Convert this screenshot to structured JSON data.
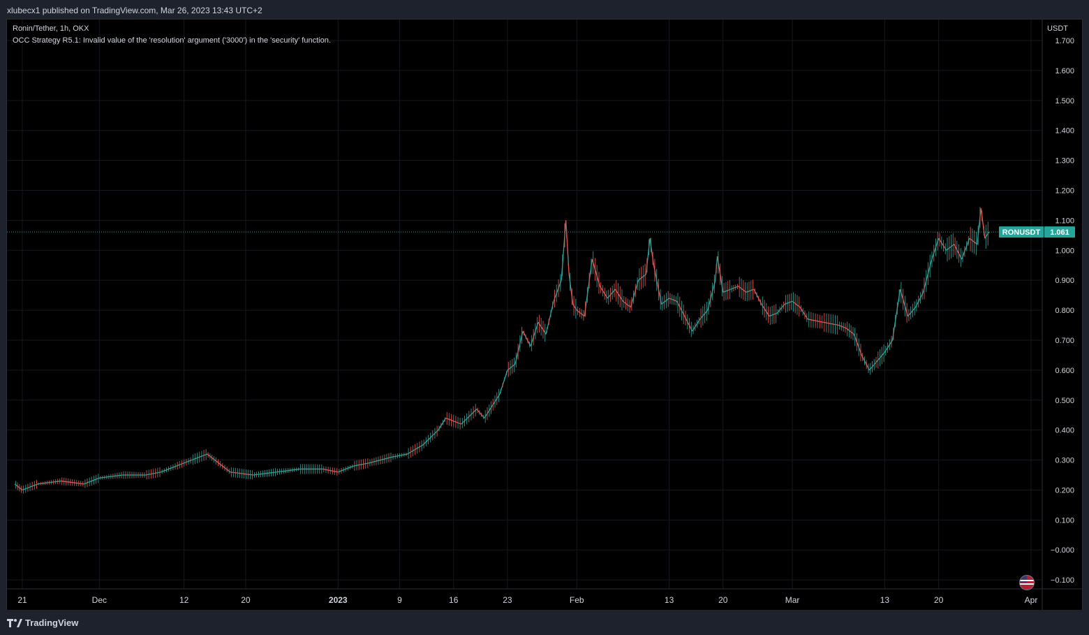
{
  "header": {
    "published_text": "xlubecx1 published on TradingView.com, Mar 26, 2023 13:43 UTC+2"
  },
  "legend": {
    "symbol_line": "Ronin/Tether, 1h, OKX",
    "indicator_error": "OCC Strategy R5.1: Invalid value of the 'resolution' argument ('3000') in the 'security' function."
  },
  "footer": {
    "brand": "TradingView"
  },
  "chart_data": {
    "type": "line",
    "symbol": "RONUSDT",
    "currency_label": "USDT",
    "last_price": "1.061",
    "yaxis": {
      "ylim": [
        -0.13,
        1.77
      ],
      "ticks": [
        "1.700",
        "1.600",
        "1.500",
        "1.400",
        "1.300",
        "1.200",
        "1.100",
        "1.000",
        "0.900",
        "0.800",
        "0.700",
        "0.600",
        "0.500",
        "0.400",
        "0.300",
        "0.200",
        "0.100",
        "−0.000",
        "−0.100"
      ]
    },
    "xaxis": {
      "ticks": [
        {
          "label": "21",
          "date": "2022-11-21"
        },
        {
          "label": "Dec",
          "date": "2022-12-01"
        },
        {
          "label": "12",
          "date": "2022-12-12"
        },
        {
          "label": "20",
          "date": "2022-12-20"
        },
        {
          "label": "2023",
          "date": "2023-01-01"
        },
        {
          "label": "9",
          "date": "2023-01-09"
        },
        {
          "label": "16",
          "date": "2023-01-16"
        },
        {
          "label": "23",
          "date": "2023-01-23"
        },
        {
          "label": "Feb",
          "date": "2023-02-01"
        },
        {
          "label": "13",
          "date": "2023-02-13"
        },
        {
          "label": "20",
          "date": "2023-02-20"
        },
        {
          "label": "Mar",
          "date": "2023-03-01"
        },
        {
          "label": "13",
          "date": "2023-03-13"
        },
        {
          "label": "20",
          "date": "2023-03-20"
        },
        {
          "label": "Apr",
          "date": "2023-04-01"
        }
      ]
    },
    "series": [
      {
        "values": [
          {
            "x": "2022-11-20",
            "y": 0.22
          },
          {
            "x": "2022-11-21",
            "y": 0.2
          },
          {
            "x": "2022-11-23",
            "y": 0.22
          },
          {
            "x": "2022-11-26",
            "y": 0.23
          },
          {
            "x": "2022-11-29",
            "y": 0.22
          },
          {
            "x": "2022-12-01",
            "y": 0.24
          },
          {
            "x": "2022-12-04",
            "y": 0.25
          },
          {
            "x": "2022-12-07",
            "y": 0.25
          },
          {
            "x": "2022-12-09",
            "y": 0.26
          },
          {
            "x": "2022-12-11",
            "y": 0.28
          },
          {
            "x": "2022-12-13",
            "y": 0.3
          },
          {
            "x": "2022-12-15",
            "y": 0.32
          },
          {
            "x": "2022-12-16",
            "y": 0.3
          },
          {
            "x": "2022-12-18",
            "y": 0.26
          },
          {
            "x": "2022-12-21",
            "y": 0.25
          },
          {
            "x": "2022-12-24",
            "y": 0.26
          },
          {
            "x": "2022-12-27",
            "y": 0.27
          },
          {
            "x": "2022-12-30",
            "y": 0.27
          },
          {
            "x": "2023-01-01",
            "y": 0.26
          },
          {
            "x": "2023-01-03",
            "y": 0.28
          },
          {
            "x": "2023-01-05",
            "y": 0.29
          },
          {
            "x": "2023-01-08",
            "y": 0.31
          },
          {
            "x": "2023-01-10",
            "y": 0.32
          },
          {
            "x": "2023-01-12",
            "y": 0.35
          },
          {
            "x": "2023-01-14",
            "y": 0.4
          },
          {
            "x": "2023-01-15",
            "y": 0.44
          },
          {
            "x": "2023-01-17",
            "y": 0.42
          },
          {
            "x": "2023-01-19",
            "y": 0.47
          },
          {
            "x": "2023-01-20",
            "y": 0.44
          },
          {
            "x": "2023-01-21",
            "y": 0.48
          },
          {
            "x": "2023-01-22",
            "y": 0.52
          },
          {
            "x": "2023-01-23",
            "y": 0.6
          },
          {
            "x": "2023-01-24",
            "y": 0.62
          },
          {
            "x": "2023-01-25",
            "y": 0.73
          },
          {
            "x": "2023-01-26",
            "y": 0.68
          },
          {
            "x": "2023-01-27",
            "y": 0.76
          },
          {
            "x": "2023-01-28",
            "y": 0.72
          },
          {
            "x": "2023-01-29",
            "y": 0.83
          },
          {
            "x": "2023-01-30",
            "y": 0.9
          },
          {
            "x": "2023-01-30T14:00",
            "y": 1.1
          },
          {
            "x": "2023-01-31",
            "y": 0.92
          },
          {
            "x": "2023-01-31T12:00",
            "y": 0.82
          },
          {
            "x": "2023-02-01",
            "y": 0.8
          },
          {
            "x": "2023-02-02",
            "y": 0.78
          },
          {
            "x": "2023-02-03",
            "y": 0.97
          },
          {
            "x": "2023-02-04",
            "y": 0.88
          },
          {
            "x": "2023-02-05",
            "y": 0.84
          },
          {
            "x": "2023-02-06",
            "y": 0.87
          },
          {
            "x": "2023-02-07",
            "y": 0.83
          },
          {
            "x": "2023-02-08",
            "y": 0.81
          },
          {
            "x": "2023-02-09",
            "y": 0.9
          },
          {
            "x": "2023-02-10",
            "y": 0.92
          },
          {
            "x": "2023-02-10T12:00",
            "y": 1.04
          },
          {
            "x": "2023-02-11",
            "y": 0.95
          },
          {
            "x": "2023-02-12",
            "y": 0.82
          },
          {
            "x": "2023-02-13",
            "y": 0.84
          },
          {
            "x": "2023-02-14",
            "y": 0.83
          },
          {
            "x": "2023-02-15",
            "y": 0.78
          },
          {
            "x": "2023-02-16",
            "y": 0.73
          },
          {
            "x": "2023-02-17",
            "y": 0.77
          },
          {
            "x": "2023-02-18",
            "y": 0.8
          },
          {
            "x": "2023-02-19",
            "y": 0.9
          },
          {
            "x": "2023-02-19T06:00",
            "y": 0.98
          },
          {
            "x": "2023-02-20",
            "y": 0.86
          },
          {
            "x": "2023-02-21",
            "y": 0.87
          },
          {
            "x": "2023-02-22",
            "y": 0.88
          },
          {
            "x": "2023-02-23",
            "y": 0.86
          },
          {
            "x": "2023-02-24",
            "y": 0.87
          },
          {
            "x": "2023-02-25",
            "y": 0.82
          },
          {
            "x": "2023-02-26",
            "y": 0.78
          },
          {
            "x": "2023-02-27",
            "y": 0.79
          },
          {
            "x": "2023-02-28",
            "y": 0.82
          },
          {
            "x": "2023-03-01",
            "y": 0.83
          },
          {
            "x": "2023-03-02",
            "y": 0.81
          },
          {
            "x": "2023-03-03",
            "y": 0.77
          },
          {
            "x": "2023-03-05",
            "y": 0.76
          },
          {
            "x": "2023-03-07",
            "y": 0.75
          },
          {
            "x": "2023-03-08",
            "y": 0.74
          },
          {
            "x": "2023-03-09",
            "y": 0.72
          },
          {
            "x": "2023-03-10",
            "y": 0.65
          },
          {
            "x": "2023-03-11",
            "y": 0.6
          },
          {
            "x": "2023-03-12",
            "y": 0.63
          },
          {
            "x": "2023-03-13",
            "y": 0.66
          },
          {
            "x": "2023-03-14",
            "y": 0.7
          },
          {
            "x": "2023-03-15",
            "y": 0.87
          },
          {
            "x": "2023-03-16",
            "y": 0.78
          },
          {
            "x": "2023-03-17",
            "y": 0.81
          },
          {
            "x": "2023-03-18",
            "y": 0.86
          },
          {
            "x": "2023-03-19",
            "y": 0.96
          },
          {
            "x": "2023-03-20",
            "y": 1.04
          },
          {
            "x": "2023-03-21",
            "y": 1.0
          },
          {
            "x": "2023-03-22",
            "y": 1.02
          },
          {
            "x": "2023-03-23",
            "y": 0.97
          },
          {
            "x": "2023-03-24",
            "y": 1.04
          },
          {
            "x": "2023-03-25",
            "y": 1.02
          },
          {
            "x": "2023-03-25T12:00",
            "y": 1.14
          },
          {
            "x": "2023-03-26",
            "y": 1.04
          },
          {
            "x": "2023-03-26T13:00",
            "y": 1.061
          }
        ]
      }
    ],
    "colors": {
      "up": "#26a69a",
      "down": "#ef5350",
      "price_label_bg": "#26a69a"
    },
    "grid": true
  }
}
